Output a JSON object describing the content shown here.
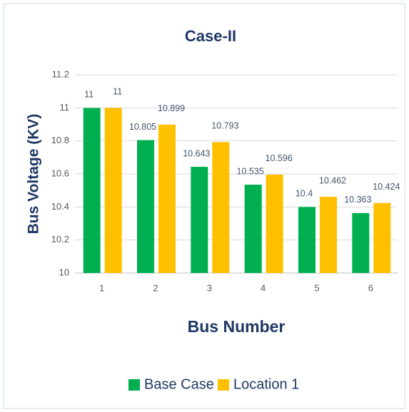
{
  "chart_data": {
    "type": "bar",
    "title": "Case-II",
    "x_label": "Bus Number",
    "y_label": "Bus Voltage (KV)",
    "categories": [
      "1",
      "2",
      "3",
      "4",
      "5",
      "6"
    ],
    "series": [
      {
        "name": "Base Case",
        "color": "#00b050",
        "values": [
          11,
          10.805,
          10.643,
          10.535,
          10.4,
          10.363
        ]
      },
      {
        "name": "Location 1",
        "color": "#ffc000",
        "values": [
          11,
          10.899,
          10.793,
          10.596,
          10.462,
          10.424
        ]
      }
    ],
    "ylim": [
      10,
      11.2
    ],
    "yticks": [
      10,
      10.2,
      10.4,
      10.6,
      10.8,
      11,
      11.2
    ],
    "grid": true,
    "legend": "bottom"
  }
}
